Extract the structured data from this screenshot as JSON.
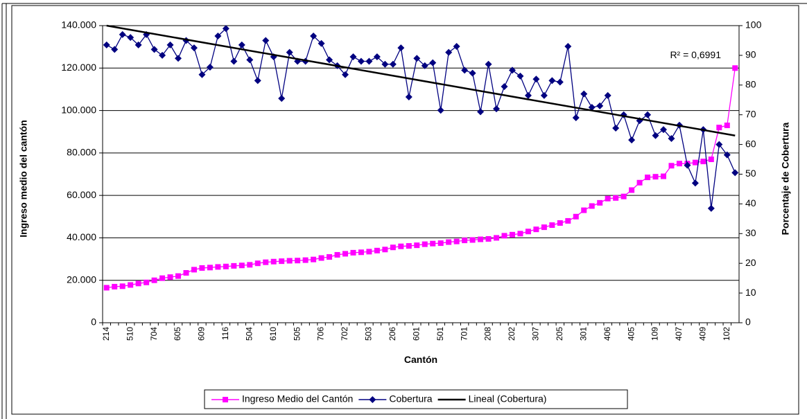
{
  "chart_data": {
    "type": "combo_line",
    "x_label": "Cantón",
    "y_label": "Ingreso medio del cantón",
    "y2_label": "Porcentaje de Cobertura",
    "annotation": "R² = 0,6991",
    "categories": [
      "214",
      null,
      null,
      "510",
      null,
      null,
      "704",
      null,
      null,
      "605",
      null,
      null,
      "609",
      null,
      null,
      "116",
      null,
      null,
      "504",
      null,
      null,
      "610",
      null,
      null,
      "505",
      null,
      null,
      "706",
      null,
      null,
      "702",
      null,
      null,
      "503",
      null,
      null,
      "206",
      null,
      null,
      "601",
      null,
      null,
      "501",
      null,
      null,
      "701",
      null,
      null,
      "208",
      null,
      null,
      "202",
      null,
      null,
      "307",
      null,
      null,
      "205",
      null,
      null,
      "301",
      null,
      null,
      "406",
      null,
      null,
      "405",
      null,
      null,
      "109",
      null,
      null,
      "407",
      null,
      null,
      "409",
      null,
      null,
      "102",
      null
    ],
    "ylim": [
      0,
      140000
    ],
    "yticks": [
      0,
      {
        "value": 20000,
        "label": "20.000"
      },
      {
        "value": 40000,
        "label": "40.000"
      },
      {
        "value": 60000,
        "label": "60.000"
      },
      {
        "value": 80000,
        "label": "80.000"
      },
      {
        "value": 100000,
        "label": "100.000"
      },
      {
        "value": 120000,
        "label": "120.000"
      },
      {
        "value": 140000,
        "label": "140.000"
      }
    ],
    "y2lim": [
      0,
      100
    ],
    "y2ticks": [
      0,
      10,
      20,
      30,
      40,
      50,
      60,
      70,
      80,
      90,
      100
    ],
    "grid": true,
    "legend": "bottom",
    "series": [
      {
        "name": "Ingreso Medio del Cantón",
        "color": "#ff00ff",
        "marker": "square",
        "values": [
          16500,
          17000,
          17200,
          17800,
          18500,
          19000,
          20000,
          21000,
          21500,
          22000,
          23500,
          25000,
          25800,
          26000,
          26300,
          26500,
          26800,
          27000,
          27300,
          28000,
          28500,
          28800,
          29000,
          29200,
          29300,
          29500,
          29800,
          30500,
          31000,
          32000,
          32500,
          33000,
          33200,
          33500,
          34000,
          34500,
          35500,
          36000,
          36200,
          36500,
          37000,
          37300,
          37500,
          38000,
          38300,
          38800,
          39000,
          39300,
          39500,
          40000,
          41000,
          41500,
          42000,
          43000,
          44000,
          45000,
          46000,
          47000,
          48000,
          50000,
          53000,
          55000,
          56500,
          58500,
          58800,
          59500,
          62500,
          66000,
          68500,
          68800,
          69000,
          74000,
          75000,
          75000,
          75500,
          76000,
          77000,
          92000,
          93000,
          120000
        ]
      },
      {
        "name": "Cobertura",
        "color": "#000080",
        "marker": "diamond",
        "axis": "y2",
        "values": [
          93.5,
          92,
          97,
          96,
          93.5,
          97,
          92,
          90,
          93.5,
          89,
          95,
          92.5,
          83.5,
          86,
          96.5,
          99,
          88,
          93.5,
          88.5,
          81.5,
          95,
          89.5,
          75.5,
          91,
          88,
          88,
          96.5,
          94,
          88.5,
          86.5,
          83.5,
          89.5,
          88,
          88,
          89.5,
          87,
          87,
          92.5,
          76,
          89,
          86.5,
          87.5,
          71.5,
          91,
          93,
          85,
          84,
          71,
          87,
          72,
          79.5,
          85,
          83,
          76.5,
          82,
          76.5,
          81.5,
          81,
          93,
          69,
          77,
          72.5,
          73,
          76.5,
          65.5,
          70,
          61.5,
          68,
          70,
          63,
          65,
          62,
          66.5,
          53,
          47,
          65,
          38.5,
          60,
          56.5,
          50.5
        ]
      }
    ],
    "trendline": {
      "name": "Lineal (Cobertura)",
      "color": "#000000",
      "axis": "y2",
      "start": 100,
      "end": 63
    }
  }
}
